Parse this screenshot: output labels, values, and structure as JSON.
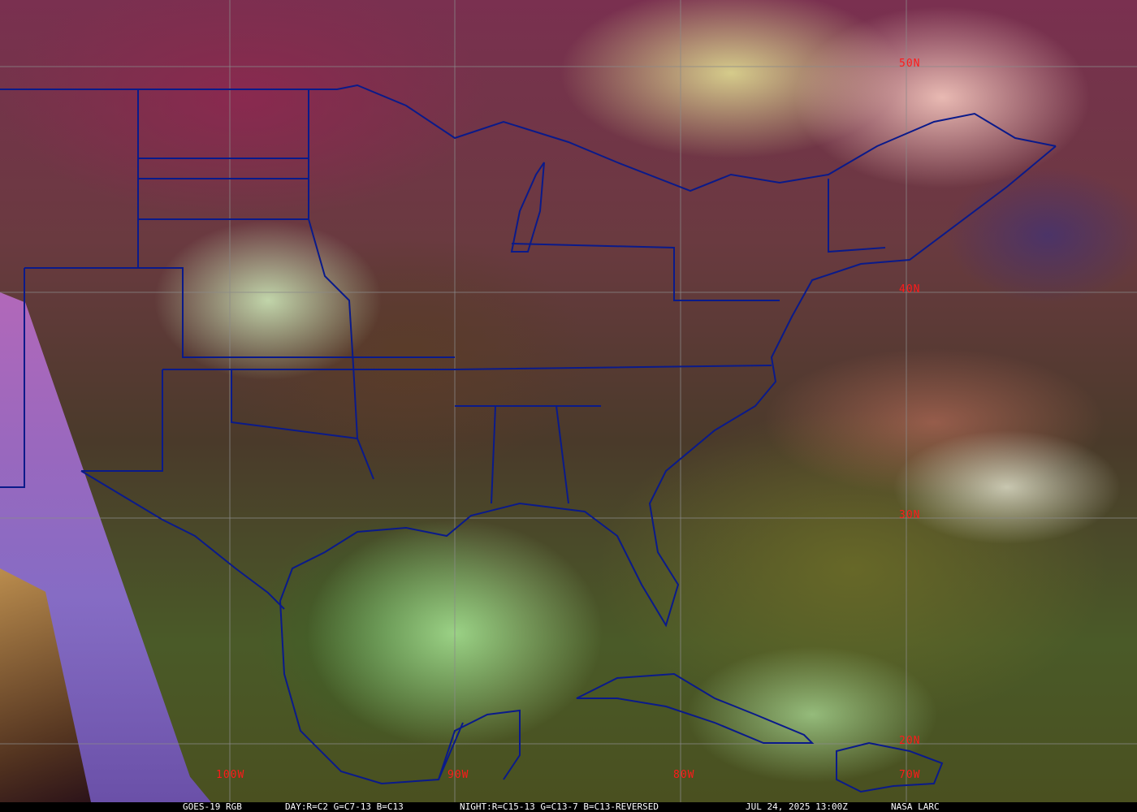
{
  "map": {
    "type": "satellite-rgb-composite",
    "grid_lines": true,
    "label_color": "#ff1a1a",
    "border_color": "#0a1a8a",
    "latitude_labels": [
      "50N",
      "40N",
      "30N",
      "20N"
    ],
    "longitude_labels": [
      "100W",
      "90W",
      "80W",
      "70W"
    ]
  },
  "caption": {
    "satellite": "GOES-19 RGB",
    "day_recipe": "DAY:R=C2 G=C7-13 B=C13",
    "night_recipe": "NIGHT:R=C15-13 G=C13-7 B=C13-REVERSED",
    "timestamp": "JUL 24, 2025 13:00Z",
    "credit": "NASA LARC"
  }
}
